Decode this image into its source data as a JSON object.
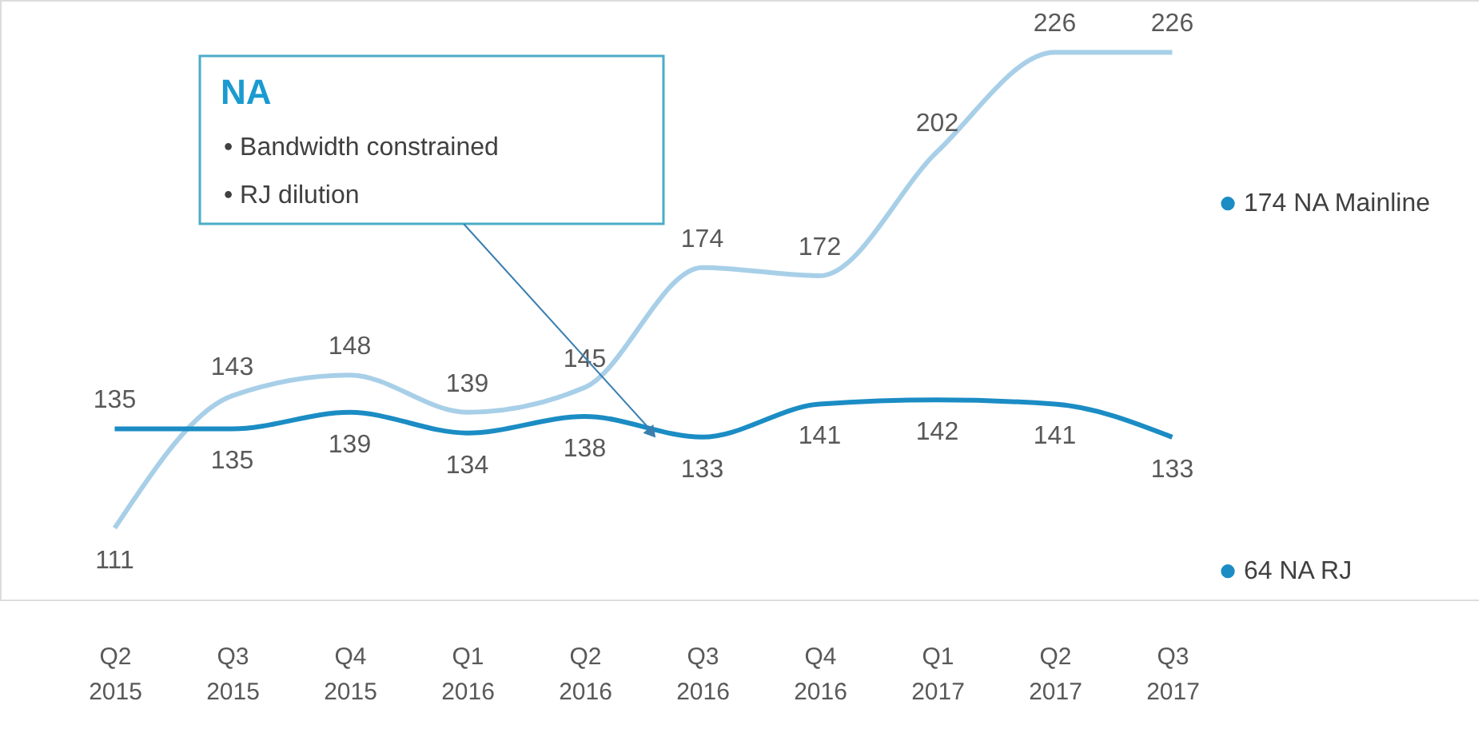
{
  "chart_data": {
    "type": "line",
    "categories": [
      "Q2 2015",
      "Q3 2015",
      "Q4 2015",
      "Q1 2016",
      "Q2 2016",
      "Q3 2016",
      "Q4 2016",
      "Q1 2017",
      "Q2 2017",
      "Q3 2017"
    ],
    "series": [
      {
        "color": "#a8cfe8",
        "values": [
          111,
          143,
          148,
          139,
          145,
          174,
          172,
          202,
          226,
          226
        ]
      },
      {
        "color": "#1b8cc4",
        "values": [
          135,
          135,
          139,
          134,
          138,
          133,
          141,
          142,
          141,
          133
        ]
      }
    ],
    "data_labels": true,
    "marker": "none",
    "line_style": "solid",
    "annotations": [
      "NA",
      "• Bandwidth constrained",
      "• RJ dilution",
      "● 174 NA Mainline",
      "● 64 NA RJ"
    ]
  }
}
